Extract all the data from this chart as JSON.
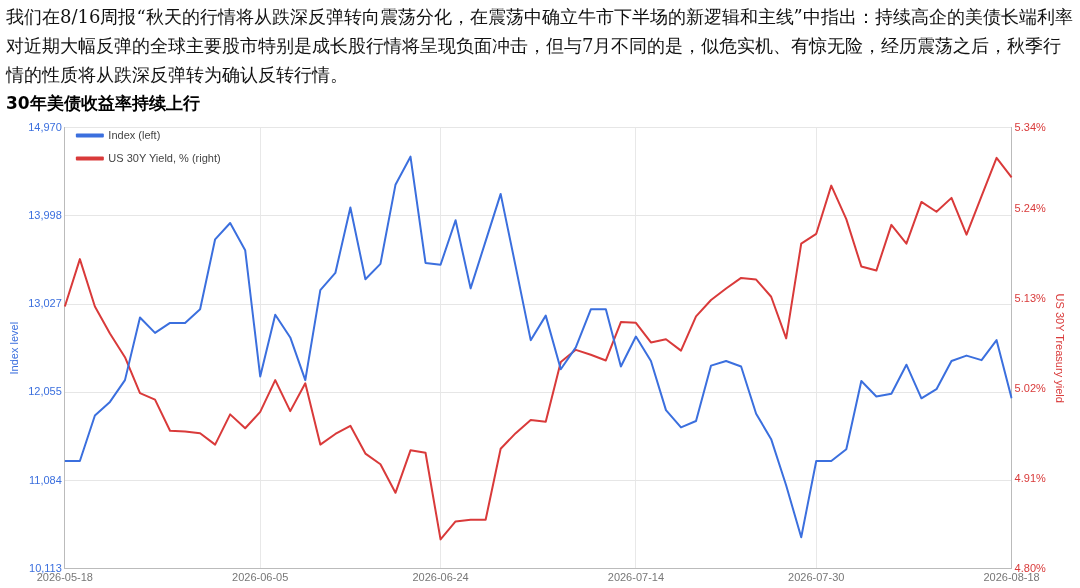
{
  "chart_data": {
    "type": "line",
    "annotations": [
      "我们在8/16周报“秋天的行情将从跌深反弹转向震荡分化，在震荡中确立牛市下半场的新逻辑和主线”中指出：持续高企的美债长端利率对近期大幅反弹的全球主要股市特别是成长股行情将呈现负面冲击，但与7月不同的是，似危实机、有惊无险，经历震荡之后，秋季行情的性质将从跌深反弹转为确认反转行情。"
    ],
    "title": "30年美债收益率持续上行",
    "categories": [
      "2026-05-18",
      null,
      null,
      null,
      null,
      null,
      null,
      null,
      null,
      null,
      null,
      null,
      null,
      "2026-06-05",
      null,
      null,
      null,
      null,
      null,
      null,
      null,
      null,
      null,
      null,
      null,
      "2026-06-24",
      null,
      null,
      null,
      null,
      null,
      null,
      null,
      null,
      null,
      null,
      null,
      null,
      "2026-07-14",
      null,
      null,
      null,
      null,
      null,
      null,
      null,
      null,
      null,
      null,
      null,
      "2026-07-30",
      null,
      null,
      null,
      null,
      null,
      null,
      null,
      null,
      null,
      null,
      null,
      null,
      "2026-08-18"
    ],
    "series": [
      {
        "name": "Index (left)",
        "color": "#3b6fde",
        "axis": "y",
        "values": [
          11300,
          11300,
          11800,
          11950,
          12190,
          12880,
          12710,
          12820,
          12820,
          12970,
          13740,
          13920,
          13620,
          12230,
          12910,
          12660,
          12190,
          13180,
          13370,
          14090,
          13300,
          13470,
          14340,
          14650,
          13480,
          13460,
          13950,
          13200,
          13720,
          14240,
          13440,
          12630,
          12900,
          12310,
          12550,
          12970,
          12970,
          12340,
          12670,
          12400,
          11860,
          11670,
          11740,
          12350,
          12400,
          12340,
          11820,
          11540,
          11030,
          10460,
          11300,
          11300,
          11430,
          12180,
          12010,
          12040,
          12360,
          11990,
          12090,
          12400,
          12460,
          12410,
          12630,
          11990
        ]
      },
      {
        "name": "US 30Y Yield, % (right)",
        "color": "#d93a3a",
        "axis": "y2",
        "values": [
          5.121,
          5.179,
          5.121,
          5.088,
          5.059,
          5.015,
          5.007,
          4.969,
          4.968,
          4.966,
          4.952,
          4.989,
          4.972,
          4.992,
          5.031,
          4.993,
          5.027,
          4.952,
          4.965,
          4.975,
          4.941,
          4.928,
          4.893,
          4.945,
          4.942,
          4.836,
          4.858,
          4.86,
          4.86,
          4.947,
          4.966,
          4.982,
          4.98,
          5.053,
          5.068,
          5.062,
          5.055,
          5.102,
          5.101,
          5.077,
          5.081,
          5.067,
          5.109,
          5.129,
          5.143,
          5.156,
          5.154,
          5.133,
          5.082,
          5.198,
          5.21,
          5.269,
          5.228,
          5.17,
          5.165,
          5.221,
          5.198,
          5.249,
          5.237,
          5.254,
          5.209,
          5.256,
          5.303,
          5.279
        ]
      }
    ],
    "ylabel": "Index level",
    "y2label": "US 30Y Treasury yield",
    "ylim": [
      10113,
      14970
    ],
    "yticks": [
      {
        "value": 14970,
        "label": "14,970"
      },
      {
        "value": 13998,
        "label": "13,998"
      },
      {
        "value": 13027,
        "label": "13,027"
      },
      {
        "value": 12055,
        "label": "12,055"
      },
      {
        "value": 11084,
        "label": "11,084"
      },
      {
        "value": 10113,
        "label": "10,113"
      }
    ],
    "y2lim": [
      4.8,
      5.34
    ],
    "y2ticks": [
      {
        "value": 5.34,
        "label": "5.34%"
      },
      {
        "value": 5.24,
        "label": "5.24%"
      },
      {
        "value": 5.13,
        "label": "5.13%"
      },
      {
        "value": 5.02,
        "label": "5.02%"
      },
      {
        "value": 4.91,
        "label": "4.91%"
      },
      {
        "value": 4.8,
        "label": "4.80%"
      }
    ],
    "grid": true,
    "legend": "top left",
    "marker": "none",
    "line_style": "solid"
  }
}
